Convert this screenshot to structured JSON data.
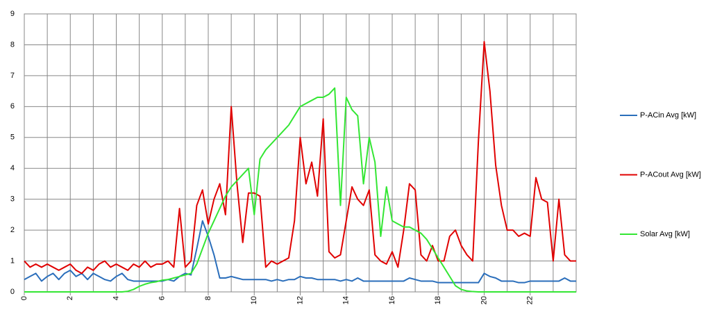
{
  "chart_data": {
    "type": "line",
    "x": [
      0,
      0.25,
      0.5,
      0.75,
      1,
      1.25,
      1.5,
      1.75,
      2,
      2.25,
      2.5,
      2.75,
      3,
      3.25,
      3.5,
      3.75,
      4,
      4.25,
      4.5,
      4.75,
      5,
      5.25,
      5.5,
      5.75,
      6,
      6.25,
      6.5,
      6.75,
      7,
      7.25,
      7.5,
      7.75,
      8,
      8.25,
      8.5,
      8.75,
      9,
      9.25,
      9.5,
      9.75,
      10,
      10.25,
      10.5,
      10.75,
      11,
      11.25,
      11.5,
      11.75,
      12,
      12.25,
      12.5,
      12.75,
      13,
      13.25,
      13.5,
      13.75,
      14,
      14.25,
      14.5,
      14.75,
      15,
      15.25,
      15.5,
      15.75,
      16,
      16.25,
      16.5,
      16.75,
      17,
      17.25,
      17.5,
      17.75,
      18,
      18.25,
      18.5,
      18.75,
      19,
      19.25,
      19.5,
      19.75,
      20,
      20.25,
      20.5,
      20.75,
      21,
      21.25,
      21.5,
      21.75,
      22,
      22.25,
      22.5,
      22.75,
      23,
      23.25,
      23.5,
      23.75,
      24
    ],
    "series": [
      {
        "name": "P-ACin Avg [kW]",
        "color": "#2a6ebb",
        "values": [
          0.4,
          0.5,
          0.6,
          0.35,
          0.5,
          0.6,
          0.4,
          0.6,
          0.7,
          0.5,
          0.6,
          0.4,
          0.6,
          0.5,
          0.4,
          0.35,
          0.5,
          0.6,
          0.4,
          0.35,
          0.35,
          0.35,
          0.35,
          0.35,
          0.35,
          0.4,
          0.35,
          0.5,
          0.6,
          0.55,
          1.4,
          2.3,
          1.8,
          1.2,
          0.45,
          0.45,
          0.5,
          0.45,
          0.4,
          0.4,
          0.4,
          0.4,
          0.4,
          0.35,
          0.4,
          0.35,
          0.4,
          0.4,
          0.5,
          0.45,
          0.45,
          0.4,
          0.4,
          0.4,
          0.4,
          0.35,
          0.4,
          0.35,
          0.45,
          0.35,
          0.35,
          0.35,
          0.35,
          0.35,
          0.35,
          0.35,
          0.35,
          0.45,
          0.4,
          0.35,
          0.35,
          0.35,
          0.3,
          0.3,
          0.3,
          0.3,
          0.3,
          0.3,
          0.3,
          0.3,
          0.6,
          0.5,
          0.45,
          0.35,
          0.35,
          0.35,
          0.3,
          0.3,
          0.35,
          0.35,
          0.35,
          0.35,
          0.35,
          0.35,
          0.45,
          0.35,
          0.35
        ]
      },
      {
        "name": "P-ACout Avg [kW]",
        "color": "#e00000",
        "values": [
          1.0,
          0.8,
          0.9,
          0.8,
          0.9,
          0.8,
          0.7,
          0.8,
          0.9,
          0.7,
          0.6,
          0.8,
          0.7,
          0.9,
          1.0,
          0.8,
          0.9,
          0.8,
          0.7,
          0.9,
          0.8,
          1.0,
          0.8,
          0.9,
          0.9,
          1.0,
          0.8,
          2.7,
          0.8,
          1.0,
          2.8,
          3.3,
          2.2,
          3.0,
          3.5,
          2.5,
          6.0,
          3.5,
          1.6,
          3.2,
          3.2,
          3.1,
          0.8,
          1.0,
          0.9,
          1.0,
          1.1,
          2.3,
          5.0,
          3.5,
          4.2,
          3.1,
          5.6,
          1.3,
          1.1,
          1.2,
          2.3,
          3.4,
          3.0,
          2.8,
          3.3,
          1.2,
          1.0,
          0.9,
          1.3,
          0.8,
          2.0,
          3.5,
          3.3,
          1.2,
          1.0,
          1.5,
          1.0,
          1.0,
          1.8,
          2.0,
          1.5,
          1.2,
          1.0,
          4.9,
          8.1,
          6.5,
          4.1,
          2.8,
          2.0,
          2.0,
          1.8,
          1.9,
          1.8,
          3.7,
          3.0,
          2.9,
          1.0,
          3.0,
          1.2,
          1.0,
          1.0
        ]
      },
      {
        "name": "Solar Avg [kW]",
        "color": "#33e633",
        "values": [
          0,
          0,
          0,
          0,
          0,
          0,
          0,
          0,
          0,
          0,
          0,
          0,
          0,
          0,
          0,
          0,
          0,
          0,
          0.02,
          0.08,
          0.18,
          0.25,
          0.3,
          0.33,
          0.38,
          0.4,
          0.45,
          0.5,
          0.55,
          0.6,
          0.9,
          1.4,
          1.9,
          2.3,
          2.7,
          3.1,
          3.4,
          3.6,
          3.8,
          4.0,
          2.5,
          4.3,
          4.6,
          4.8,
          5.0,
          5.2,
          5.4,
          5.7,
          6.0,
          6.1,
          6.2,
          6.3,
          6.3,
          6.4,
          6.6,
          2.8,
          6.3,
          5.9,
          5.7,
          3.5,
          5.0,
          4.2,
          1.8,
          3.4,
          2.3,
          2.2,
          2.1,
          2.1,
          2.0,
          1.9,
          1.7,
          1.4,
          1.1,
          0.8,
          0.5,
          0.2,
          0.08,
          0.03,
          0.01,
          0,
          0,
          0,
          0,
          0,
          0,
          0,
          0,
          0,
          0,
          0,
          0,
          0,
          0,
          0,
          0,
          0,
          0
        ]
      }
    ],
    "xlim": [
      0,
      24
    ],
    "xticks": [
      0,
      2,
      4,
      6,
      8,
      10,
      12,
      14,
      16,
      18,
      20,
      22
    ],
    "xgrid": [
      0,
      1,
      2,
      3,
      4,
      5,
      6,
      7,
      8,
      9,
      10,
      11,
      12,
      13,
      14,
      15,
      16,
      17,
      18,
      19,
      20,
      21,
      22,
      23,
      24
    ],
    "ylim": [
      0,
      9
    ],
    "yticks": [
      0,
      1,
      2,
      3,
      4,
      5,
      6,
      7,
      8,
      9
    ],
    "grid": true,
    "legend": "right"
  }
}
